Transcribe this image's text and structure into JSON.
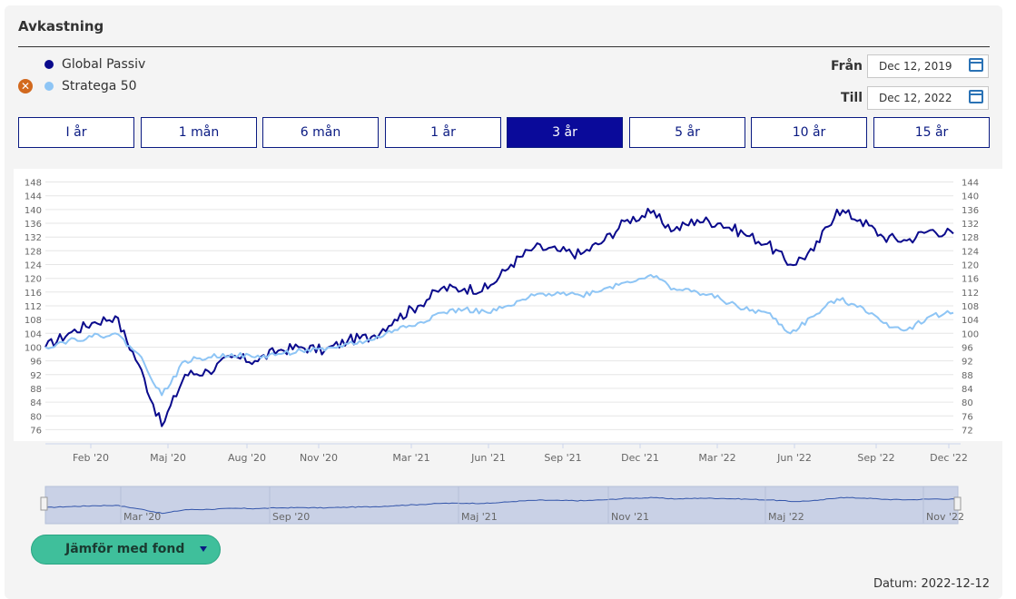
{
  "header": {
    "title": "Avkastning"
  },
  "legend": [
    {
      "name": "Global Passiv",
      "color": "#0a0a8c",
      "removable": false
    },
    {
      "name": "Stratega 50",
      "color": "#8ec5f5",
      "removable": true
    }
  ],
  "date_range": {
    "from_label": "Från",
    "from_value": "Dec 12, 2019",
    "to_label": "Till",
    "to_value": "Dec 12, 2022"
  },
  "range_buttons": [
    {
      "label": "I år"
    },
    {
      "label": "1 mån"
    },
    {
      "label": "6 mån"
    },
    {
      "label": "1 år"
    },
    {
      "label": "3 år",
      "active": true
    },
    {
      "label": "5 år"
    },
    {
      "label": "10 år"
    },
    {
      "label": "15 år"
    }
  ],
  "compare_button": {
    "label": "Jämför med fond"
  },
  "footer": {
    "datum": "Datum: 2022-12-12"
  },
  "chart_data": {
    "type": "line",
    "title": "",
    "xlabel": "",
    "ylabel": "",
    "y_ticks_left": [
      76,
      80,
      84,
      88,
      92,
      96,
      100,
      104,
      108,
      112,
      116,
      120,
      124,
      128,
      132,
      136,
      140,
      144,
      148
    ],
    "y_ticks_right": [
      72,
      76,
      80,
      84,
      88,
      92,
      96,
      100,
      104,
      108,
      112,
      116,
      120,
      124,
      128,
      132,
      136,
      140,
      144
    ],
    "ylim": [
      72,
      148
    ],
    "x_ticks": [
      "Feb '20",
      "Maj '20",
      "Aug '20",
      "Nov '20",
      "Mar '21",
      "Jun '21",
      "Sep '21",
      "Dec '21",
      "Mar '22",
      "Jun '22",
      "Sep '22",
      "Dec '22"
    ],
    "navigator_ticks": [
      "Mar '20",
      "Sep '20",
      "Maj '21",
      "Nov '21",
      "Maj '22",
      "Nov '22"
    ],
    "x": [
      "2019-12",
      "2020-01",
      "2020-02",
      "2020-02",
      "2020-03",
      "2020-03",
      "2020-04",
      "2020-05",
      "2020-06",
      "2020-07",
      "2020-08",
      "2020-09",
      "2020-10",
      "2020-11",
      "2020-12",
      "2021-01",
      "2021-02",
      "2021-03",
      "2021-04",
      "2021-05",
      "2021-06",
      "2021-07",
      "2021-08",
      "2021-09",
      "2021-10",
      "2021-11",
      "2021-12",
      "2022-01",
      "2022-02",
      "2022-03",
      "2022-04",
      "2022-05",
      "2022-06",
      "2022-07",
      "2022-08",
      "2022-08",
      "2022-09",
      "2022-10",
      "2022-11",
      "2022-12"
    ],
    "series": [
      {
        "name": "Global Passiv",
        "color": "#0a0a8c",
        "values": [
          100,
          104,
          107,
          109,
          95,
          77,
          92,
          93,
          97,
          96,
          99,
          100,
          99,
          102,
          103,
          108,
          112,
          117,
          117,
          117,
          124,
          129,
          128,
          127,
          131,
          137,
          139,
          134,
          137,
          136,
          133,
          130,
          124,
          128,
          140,
          137,
          132,
          131,
          134,
          133
        ]
      },
      {
        "name": "Stratega 50",
        "color": "#8ec5f5",
        "values": [
          100,
          102,
          103,
          104,
          98,
          86,
          96,
          97,
          98,
          97,
          98,
          99,
          99,
          101,
          102,
          105,
          107,
          110,
          111,
          110,
          112,
          115,
          116,
          115,
          117,
          119,
          121,
          117,
          116,
          114,
          111,
          110,
          104,
          109,
          114,
          112,
          107,
          105,
          109,
          110
        ]
      }
    ]
  }
}
